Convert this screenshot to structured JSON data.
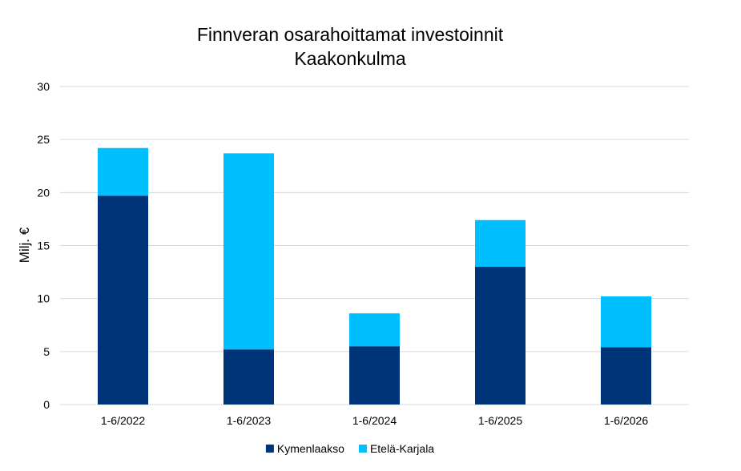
{
  "chart_data": {
    "type": "bar",
    "stacked": true,
    "title": "Finnveran osarahoittamat investoinnit",
    "subtitle": "Kaakonkulma",
    "xlabel": "",
    "ylabel": "Milj. €",
    "categories": [
      "1-6/2022",
      "1-6/2023",
      "1-6/2024",
      "1-6/2025",
      "1-6/2026"
    ],
    "series": [
      {
        "name": "Kymenlaakso",
        "color": "#003478",
        "values": [
          19.7,
          5.2,
          5.5,
          13.0,
          5.4
        ]
      },
      {
        "name": "Etelä-Karjala",
        "color": "#00BFFF",
        "values": [
          4.5,
          18.5,
          3.1,
          4.4,
          4.8
        ]
      }
    ],
    "ylim": [
      0,
      30
    ],
    "yticks": [
      "0",
      "5",
      "10",
      "15",
      "20",
      "25",
      "30"
    ],
    "grid": true,
    "legend": "bottom"
  }
}
